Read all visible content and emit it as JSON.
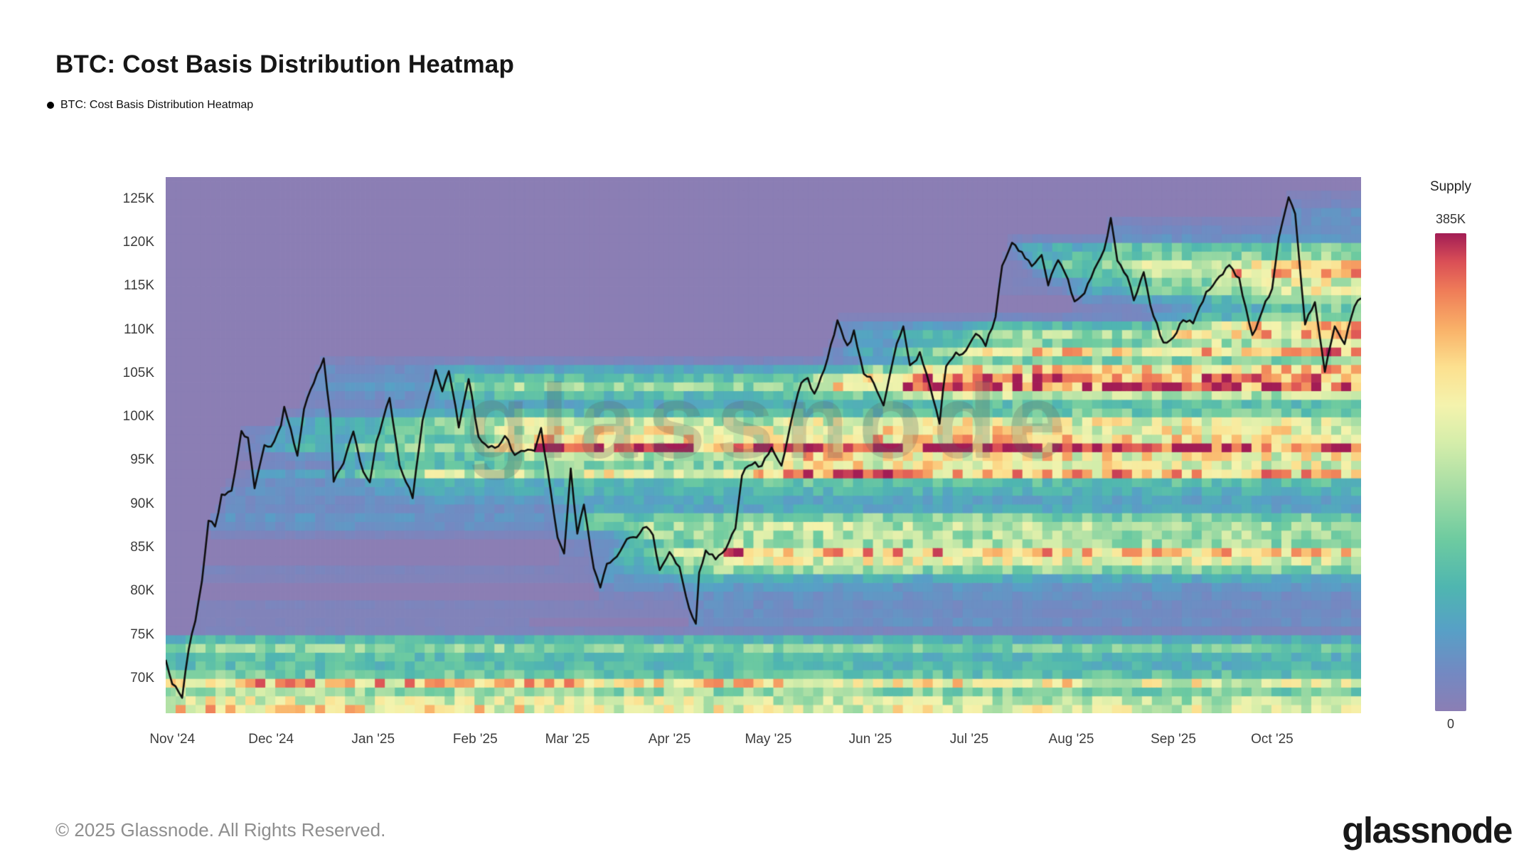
{
  "page": {
    "title": "BTC: Cost Basis Distribution Heatmap",
    "watermark": "glassnode"
  },
  "legend": {
    "label": "BTC: Cost Basis Distribution Heatmap"
  },
  "colorbar": {
    "title": "Supply",
    "max_label": "385K",
    "min_label": "0"
  },
  "footer": {
    "copyright": "© 2025 Glassnode. All Rights Reserved.",
    "brand": "glassnode"
  },
  "chart_data": {
    "type": "heatmap",
    "title": "BTC: Cost Basis Distribution Heatmap",
    "x_tick_labels": [
      "Nov '24",
      "Dec '24",
      "Jan '25",
      "Feb '25",
      "Mar '25",
      "Apr '25",
      "May '25",
      "Jun '25",
      "Jul '25",
      "Aug '25",
      "Sep '25",
      "Oct '25"
    ],
    "x_tick_days": [
      2,
      32,
      63,
      94,
      122,
      153,
      183,
      214,
      244,
      275,
      306,
      336
    ],
    "time_span_days": 363,
    "y_tick_labels": [
      "70K",
      "75K",
      "80K",
      "85K",
      "90K",
      "95K",
      "100K",
      "105K",
      "110K",
      "115K",
      "120K",
      "125K"
    ],
    "y_tick_values": [
      70,
      75,
      80,
      85,
      90,
      95,
      100,
      105,
      110,
      115,
      120,
      125
    ],
    "y_range_kusd": [
      66,
      127.5
    ],
    "supply_scale": {
      "min": 0,
      "max": 385000,
      "min_label": "0",
      "max_label": "385K"
    },
    "background_zero_color": "#8b7eb4",
    "price_line_color": "#0e0e0e",
    "colormap": [
      {
        "t": 0.0,
        "c": "#8b7eb4"
      },
      {
        "t": 0.08,
        "c": "#7389c2"
      },
      {
        "t": 0.17,
        "c": "#57a0c6"
      },
      {
        "t": 0.26,
        "c": "#4fb6b0"
      },
      {
        "t": 0.36,
        "c": "#6ecba0"
      },
      {
        "t": 0.46,
        "c": "#a3dca4"
      },
      {
        "t": 0.56,
        "c": "#d4edaa"
      },
      {
        "t": 0.64,
        "c": "#f4f3ad"
      },
      {
        "t": 0.72,
        "c": "#fce08f"
      },
      {
        "t": 0.8,
        "c": "#f9b168"
      },
      {
        "t": 0.88,
        "c": "#ef7c58"
      },
      {
        "t": 0.94,
        "c": "#da4f56"
      },
      {
        "t": 1.0,
        "c": "#a21d55"
      }
    ],
    "price_line_kusd": [
      [
        0,
        72
      ],
      [
        2,
        69.5
      ],
      [
        5,
        67.8
      ],
      [
        7,
        73.5
      ],
      [
        9,
        76.5
      ],
      [
        11,
        81
      ],
      [
        13,
        88
      ],
      [
        15,
        87.5
      ],
      [
        17,
        91
      ],
      [
        20,
        91.5
      ],
      [
        23,
        98.3
      ],
      [
        25,
        97.5
      ],
      [
        27,
        91.8
      ],
      [
        30,
        97
      ],
      [
        32,
        96.5
      ],
      [
        35,
        99
      ],
      [
        36,
        101
      ],
      [
        38,
        98.5
      ],
      [
        40,
        95.5
      ],
      [
        42,
        101
      ],
      [
        45,
        104
      ],
      [
        48,
        106.8
      ],
      [
        50,
        100
      ],
      [
        51,
        92.8
      ],
      [
        54,
        94.5
      ],
      [
        57,
        98.5
      ],
      [
        60,
        93.5
      ],
      [
        62,
        92.3
      ],
      [
        64,
        97
      ],
      [
        68,
        102.2
      ],
      [
        71,
        94.5
      ],
      [
        75,
        90.8
      ],
      [
        78,
        99.5
      ],
      [
        82,
        105.3
      ],
      [
        84,
        103
      ],
      [
        86,
        105.2
      ],
      [
        89,
        99
      ],
      [
        92,
        104.5
      ],
      [
        95,
        97.5
      ],
      [
        97,
        96.8
      ],
      [
        100,
        96.3
      ],
      [
        103,
        97.8
      ],
      [
        106,
        95.8
      ],
      [
        109,
        96.3
      ],
      [
        112,
        96.3
      ],
      [
        114,
        98.5
      ],
      [
        117,
        91.5
      ],
      [
        119,
        86
      ],
      [
        121,
        84.2
      ],
      [
        123,
        94
      ],
      [
        125,
        86.5
      ],
      [
        127,
        90
      ],
      [
        130,
        82.5
      ],
      [
        132,
        80.3
      ],
      [
        134,
        83.2
      ],
      [
        137,
        84
      ],
      [
        140,
        85.8
      ],
      [
        143,
        86.2
      ],
      [
        145,
        87.5
      ],
      [
        148,
        86.5
      ],
      [
        150,
        82.3
      ],
      [
        153,
        84.5
      ],
      [
        156,
        82.8
      ],
      [
        159,
        78
      ],
      [
        161,
        76.3
      ],
      [
        162,
        82
      ],
      [
        164,
        84.5
      ],
      [
        167,
        83.8
      ],
      [
        170,
        84.8
      ],
      [
        173,
        87.3
      ],
      [
        175,
        93.5
      ],
      [
        178,
        94.7
      ],
      [
        181,
        94.3
      ],
      [
        184,
        96.6
      ],
      [
        187,
        94.3
      ],
      [
        190,
        99.5
      ],
      [
        193,
        104
      ],
      [
        195,
        104.3
      ],
      [
        197,
        102.7
      ],
      [
        200,
        105.2
      ],
      [
        203,
        109.5
      ],
      [
        204,
        111
      ],
      [
        207,
        108
      ],
      [
        209,
        109.7
      ],
      [
        212,
        104.7
      ],
      [
        214,
        104.5
      ],
      [
        218,
        101.5
      ],
      [
        222,
        108.2
      ],
      [
        224,
        110.3
      ],
      [
        226,
        105.8
      ],
      [
        229,
        107.2
      ],
      [
        232,
        103.8
      ],
      [
        235,
        99.3
      ],
      [
        237,
        106
      ],
      [
        240,
        107.2
      ],
      [
        243,
        107.5
      ],
      [
        246,
        109.7
      ],
      [
        249,
        108.3
      ],
      [
        252,
        111.3
      ],
      [
        254,
        117.3
      ],
      [
        257,
        120.2
      ],
      [
        260,
        118.8
      ],
      [
        263,
        117.3
      ],
      [
        266,
        118.7
      ],
      [
        268,
        115.3
      ],
      [
        271,
        118.2
      ],
      [
        274,
        115.7
      ],
      [
        276,
        113.2
      ],
      [
        279,
        114.3
      ],
      [
        282,
        116.8
      ],
      [
        285,
        119.2
      ],
      [
        287,
        122.7
      ],
      [
        289,
        117.8
      ],
      [
        292,
        116.3
      ],
      [
        294,
        113.3
      ],
      [
        297,
        116.8
      ],
      [
        299,
        112.8
      ],
      [
        303,
        108.3
      ],
      [
        306,
        109
      ],
      [
        309,
        111.2
      ],
      [
        312,
        110.7
      ],
      [
        316,
        114.2
      ],
      [
        319,
        115.7
      ],
      [
        323,
        117.3
      ],
      [
        326,
        115.8
      ],
      [
        330,
        109.2
      ],
      [
        333,
        112.3
      ],
      [
        336,
        114.7
      ],
      [
        338,
        120.3
      ],
      [
        341,
        125.4
      ],
      [
        343,
        123.3
      ],
      [
        345,
        114.8
      ],
      [
        346,
        110.8
      ],
      [
        349,
        113.2
      ],
      [
        352,
        105.3
      ],
      [
        355,
        110.6
      ],
      [
        358,
        108.3
      ],
      [
        361,
        112.8
      ],
      [
        363,
        113.4
      ]
    ],
    "baseline_supply_bands_kusd": [
      {
        "price": 66,
        "intensity": 0.8
      },
      {
        "price": 67,
        "intensity": 0.45
      },
      {
        "price": 68,
        "intensity": 0.3
      },
      {
        "price": 69,
        "intensity": 0.5
      },
      {
        "price": 70,
        "intensity": 0.35
      },
      {
        "price": 71,
        "intensity": 0.28
      },
      {
        "price": 72,
        "intensity": 0.32
      },
      {
        "price": 73,
        "intensity": 0.3
      },
      {
        "price": 74,
        "intensity": 0.22
      }
    ]
  }
}
